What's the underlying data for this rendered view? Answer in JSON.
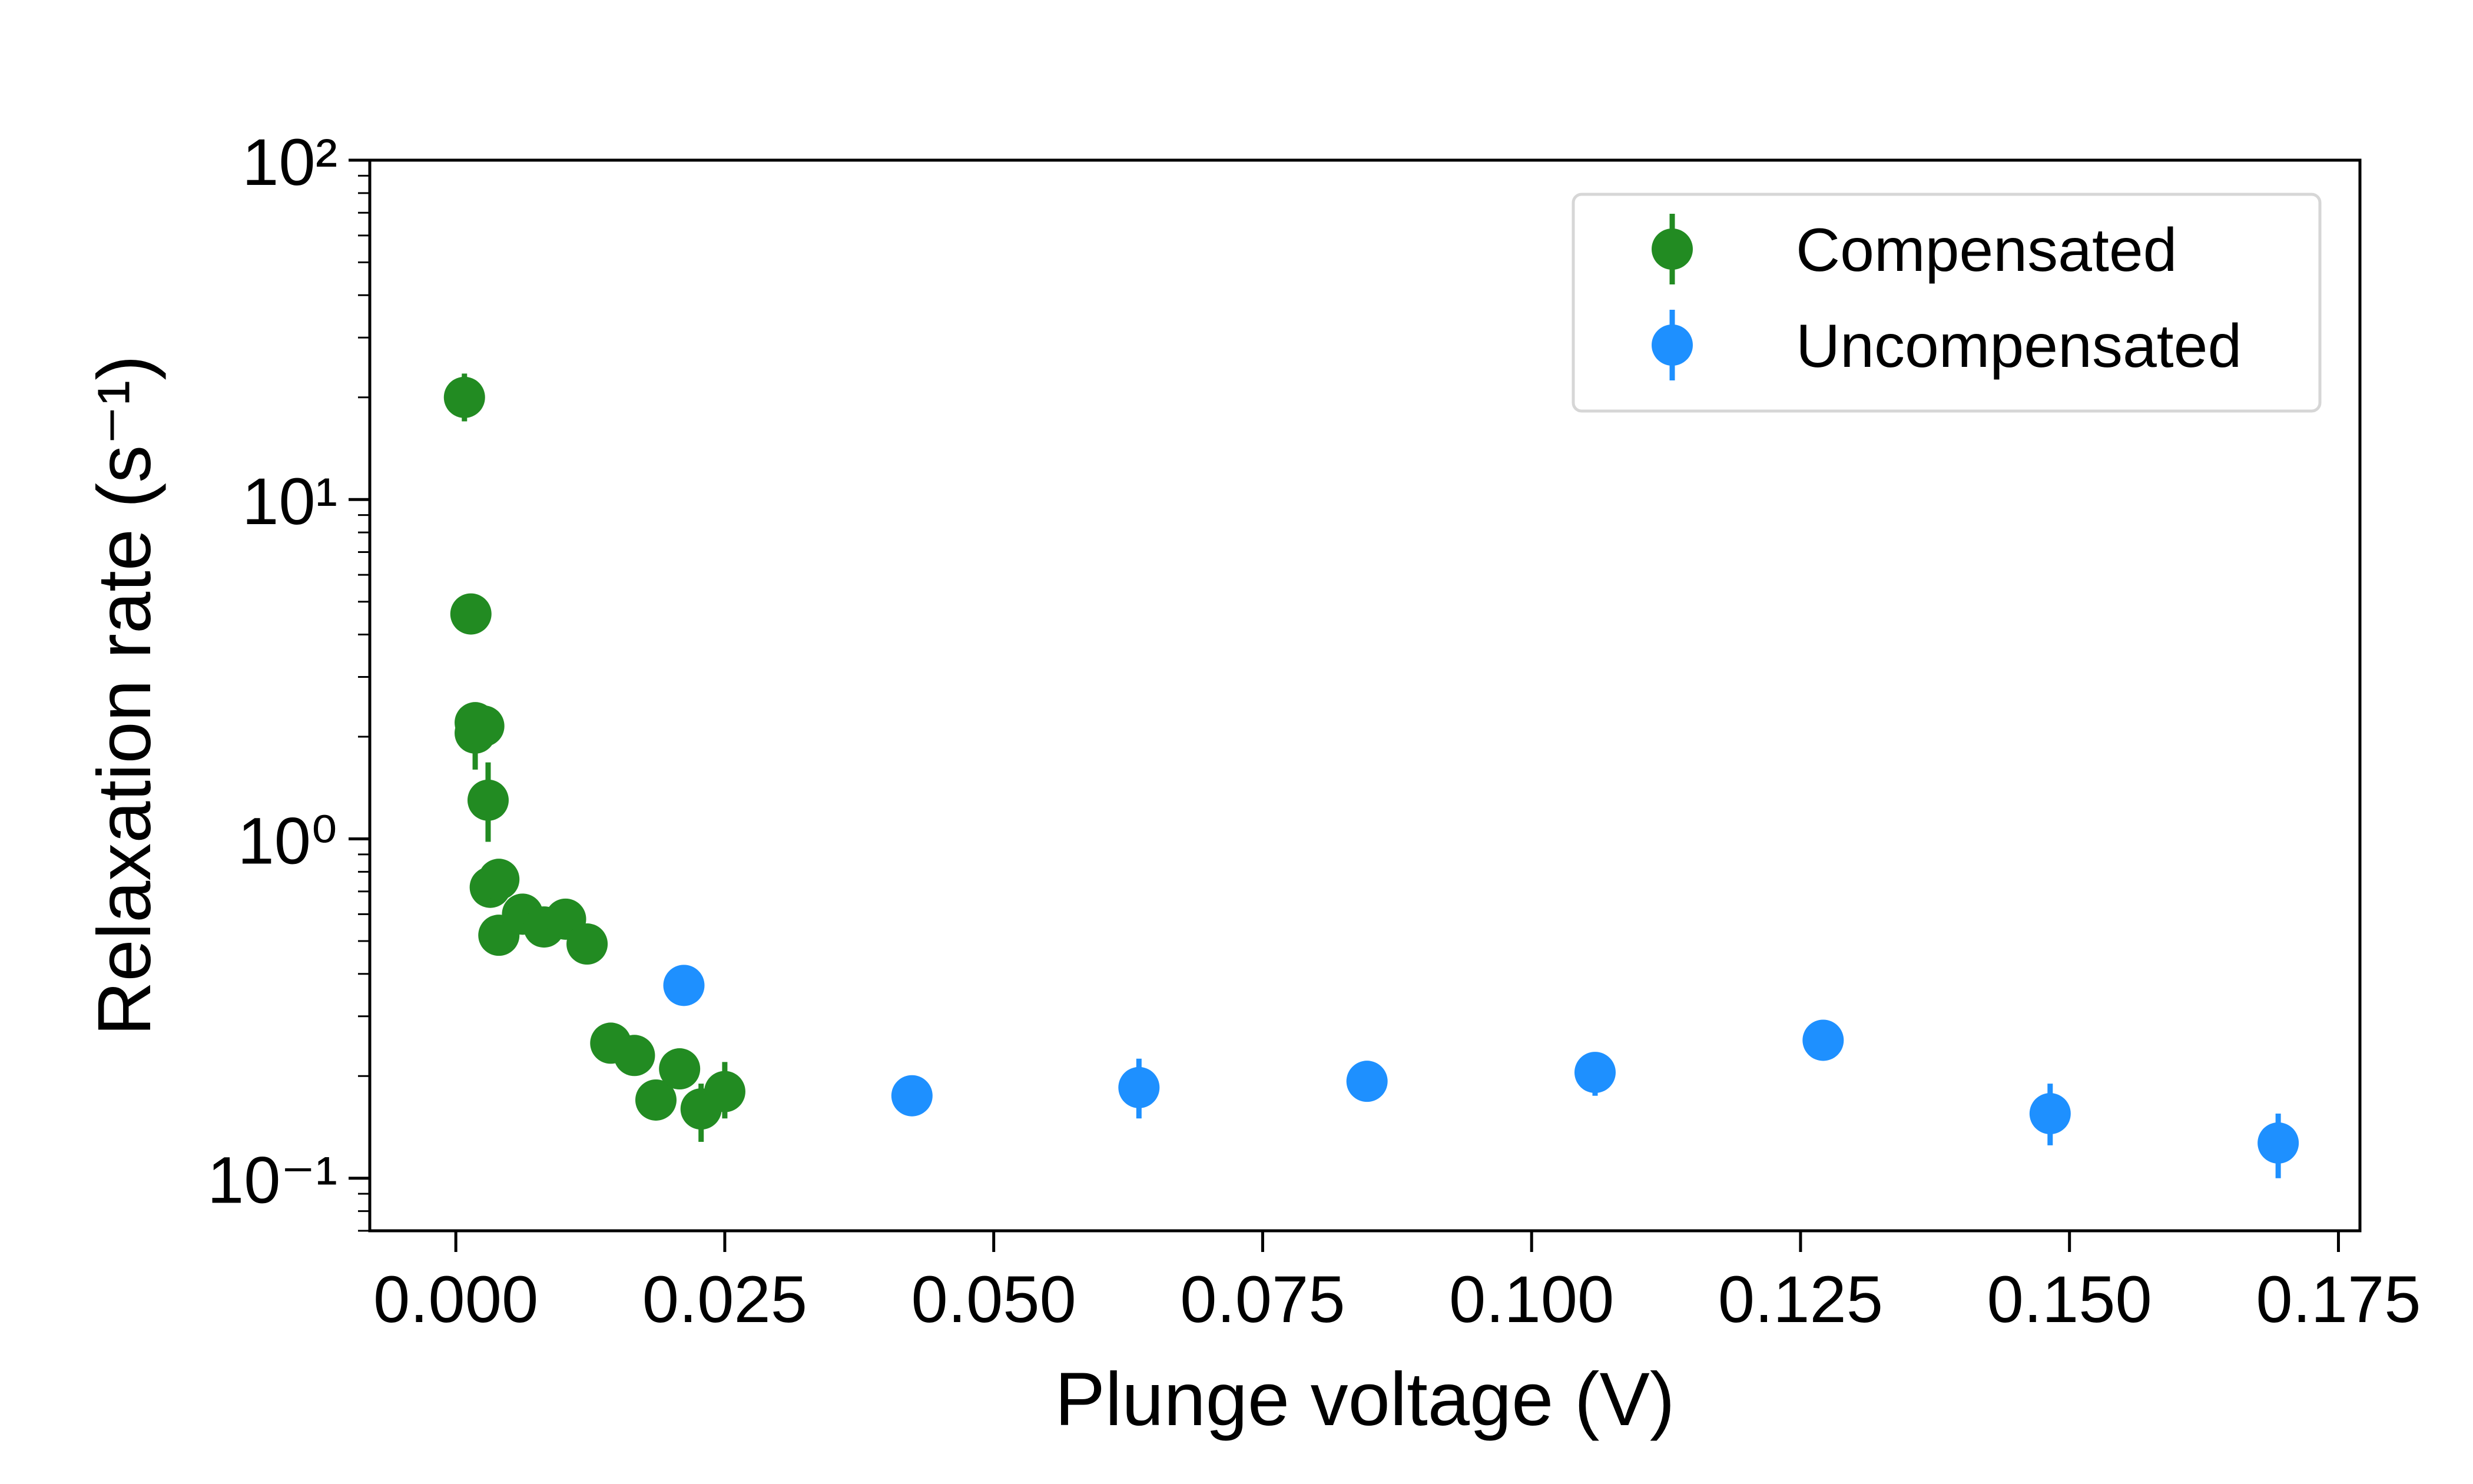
{
  "chart_data": {
    "type": "scatter",
    "xlabel": "Plunge voltage (V)",
    "ylabel": "Relaxation rate (s⁻¹)",
    "xlim": [
      -0.008,
      0.177
    ],
    "ylim": [
      0.07,
      100
    ],
    "yscale": "log",
    "xticks": [
      "0.000",
      "0.025",
      "0.050",
      "0.075",
      "0.100",
      "0.125",
      "0.150",
      "0.175"
    ],
    "yticks": [
      "10⁻¹",
      "10⁰",
      "10¹",
      "10²"
    ],
    "grid": false,
    "legend_position": "top-right",
    "series": [
      {
        "name": "Compensated",
        "color": "#228b22",
        "marker": "circle",
        "points": [
          {
            "x": 0.0008,
            "y": 20.0,
            "y_low": 17.0,
            "y_high": 23.5
          },
          {
            "x": 0.0014,
            "y": 4.6,
            "y_low": 4.3,
            "y_high": 4.9
          },
          {
            "x": 0.0018,
            "y": 2.2,
            "y_low": 2.0,
            "y_high": 2.4
          },
          {
            "x": 0.0018,
            "y": 2.05,
            "y_low": 1.6,
            "y_high": 2.5
          },
          {
            "x": 0.0026,
            "y": 2.15,
            "y_low": 1.9,
            "y_high": 2.4
          },
          {
            "x": 0.003,
            "y": 1.3,
            "y_low": 0.98,
            "y_high": 1.68
          },
          {
            "x": 0.0032,
            "y": 0.72,
            "y_low": 0.68,
            "y_high": 0.76
          },
          {
            "x": 0.004,
            "y": 0.76,
            "y_low": 0.72,
            "y_high": 0.8
          },
          {
            "x": 0.004,
            "y": 0.52,
            "y_low": 0.49,
            "y_high": 0.55
          },
          {
            "x": 0.0062,
            "y": 0.6,
            "y_low": 0.57,
            "y_high": 0.63
          },
          {
            "x": 0.0082,
            "y": 0.55,
            "y_low": 0.52,
            "y_high": 0.58
          },
          {
            "x": 0.0102,
            "y": 0.58,
            "y_low": 0.55,
            "y_high": 0.61
          },
          {
            "x": 0.0122,
            "y": 0.49,
            "y_low": 0.465,
            "y_high": 0.515
          },
          {
            "x": 0.0144,
            "y": 0.25,
            "y_low": 0.237,
            "y_high": 0.263
          },
          {
            "x": 0.0166,
            "y": 0.23,
            "y_low": 0.218,
            "y_high": 0.242
          },
          {
            "x": 0.0186,
            "y": 0.17,
            "y_low": 0.161,
            "y_high": 0.179
          },
          {
            "x": 0.0208,
            "y": 0.21,
            "y_low": 0.199,
            "y_high": 0.221
          },
          {
            "x": 0.0228,
            "y": 0.16,
            "y_low": 0.128,
            "y_high": 0.19
          },
          {
            "x": 0.025,
            "y": 0.18,
            "y_low": 0.15,
            "y_high": 0.22
          }
        ]
      },
      {
        "name": "Uncompensated",
        "color": "#1e90ff",
        "marker": "circle",
        "points": [
          {
            "x": 0.0212,
            "y": 0.37,
            "y_low": 0.35,
            "y_high": 0.39
          },
          {
            "x": 0.0424,
            "y": 0.175,
            "y_low": 0.166,
            "y_high": 0.184
          },
          {
            "x": 0.0635,
            "y": 0.185,
            "y_low": 0.15,
            "y_high": 0.225
          },
          {
            "x": 0.0847,
            "y": 0.193,
            "y_low": 0.183,
            "y_high": 0.203
          },
          {
            "x": 0.1059,
            "y": 0.205,
            "y_low": 0.175,
            "y_high": 0.235
          },
          {
            "x": 0.1271,
            "y": 0.255,
            "y_low": 0.225,
            "y_high": 0.285
          },
          {
            "x": 0.1482,
            "y": 0.155,
            "y_low": 0.125,
            "y_high": 0.19
          },
          {
            "x": 0.1694,
            "y": 0.127,
            "y_low": 0.1,
            "y_high": 0.155
          }
        ]
      }
    ]
  }
}
